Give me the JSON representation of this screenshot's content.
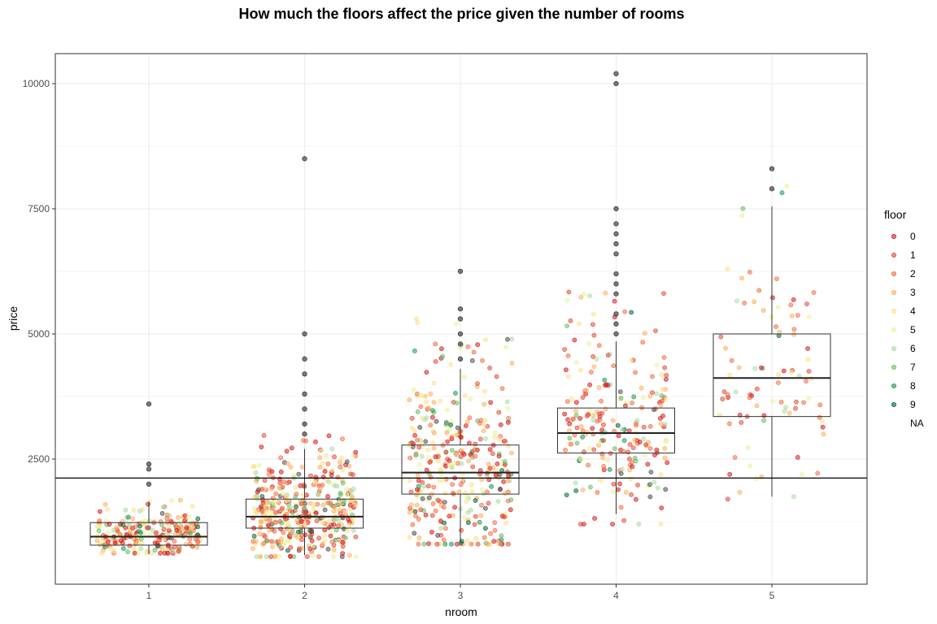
{
  "chart_data": {
    "type": "boxplot-jitter",
    "title": "How much the floors affect the price given the number of rooms",
    "xlabel": "nroom",
    "ylabel": "price",
    "x_categories": [
      "1",
      "2",
      "3",
      "4",
      "5"
    ],
    "y_ticks": [
      2500,
      5000,
      7500,
      10000
    ],
    "ylim": [
      0,
      10600
    ],
    "grid": true,
    "reference_line": 2120,
    "legend": {
      "title": "floor",
      "position": "right",
      "levels": [
        "0",
        "1",
        "2",
        "3",
        "4",
        "5",
        "6",
        "7",
        "8",
        "9",
        "NA"
      ],
      "colors": [
        "#d7191c",
        "#e34a33",
        "#f46d43",
        "#fdae61",
        "#fee08b",
        "#e6f598",
        "#abdda4",
        "#66bd63",
        "#1a9850",
        "#006837",
        "#4d4d4d"
      ]
    },
    "boxes": [
      {
        "nroom": "1",
        "q1": 780,
        "median": 950,
        "q3": 1230,
        "whisker_low": 600,
        "whisker_high": 1650
      },
      {
        "nroom": "2",
        "q1": 1120,
        "median": 1350,
        "q3": 1700,
        "whisker_low": 580,
        "whisker_high": 2700
      },
      {
        "nroom": "3",
        "q1": 1800,
        "median": 2230,
        "q3": 2780,
        "whisker_low": 850,
        "whisker_high": 4300
      },
      {
        "nroom": "4",
        "q1": 2620,
        "median": 3020,
        "q3": 3520,
        "whisker_low": 1400,
        "whisker_high": 4850
      },
      {
        "nroom": "5",
        "q1": 3350,
        "median": 4120,
        "q3": 5000,
        "whisker_low": 1750,
        "whisker_high": 7550
      }
    ],
    "outliers": [
      {
        "nroom": "1",
        "price": 3600
      },
      {
        "nroom": "1",
        "price": 2400
      },
      {
        "nroom": "1",
        "price": 2300
      },
      {
        "nroom": "1",
        "price": 2000
      },
      {
        "nroom": "2",
        "price": 8500
      },
      {
        "nroom": "2",
        "price": 5000
      },
      {
        "nroom": "2",
        "price": 4500
      },
      {
        "nroom": "2",
        "price": 4200
      },
      {
        "nroom": "2",
        "price": 3800
      },
      {
        "nroom": "2",
        "price": 3500
      },
      {
        "nroom": "2",
        "price": 3200
      },
      {
        "nroom": "2",
        "price": 3000
      },
      {
        "nroom": "3",
        "price": 6250
      },
      {
        "nroom": "3",
        "price": 5500
      },
      {
        "nroom": "3",
        "price": 5300
      },
      {
        "nroom": "3",
        "price": 5000
      },
      {
        "nroom": "3",
        "price": 4800
      },
      {
        "nroom": "3",
        "price": 4500
      },
      {
        "nroom": "4",
        "price": 10200
      },
      {
        "nroom": "4",
        "price": 10000
      },
      {
        "nroom": "4",
        "price": 7500
      },
      {
        "nroom": "4",
        "price": 7200
      },
      {
        "nroom": "4",
        "price": 7000
      },
      {
        "nroom": "4",
        "price": 6800
      },
      {
        "nroom": "4",
        "price": 6600
      },
      {
        "nroom": "4",
        "price": 6200
      },
      {
        "nroom": "4",
        "price": 6000
      },
      {
        "nroom": "4",
        "price": 5800
      },
      {
        "nroom": "4",
        "price": 5400
      },
      {
        "nroom": "4",
        "price": 5200
      },
      {
        "nroom": "4",
        "price": 5000
      },
      {
        "nroom": "5",
        "price": 8300
      },
      {
        "nroom": "5",
        "price": 7900
      }
    ],
    "point_groups": [
      {
        "nroom": "1",
        "count": 240,
        "min": 620,
        "max": 1700,
        "center": 950
      },
      {
        "nroom": "2",
        "count": 420,
        "min": 550,
        "max": 3000,
        "center": 1400
      },
      {
        "nroom": "3",
        "count": 360,
        "min": 800,
        "max": 5300,
        "center": 2300
      },
      {
        "nroom": "4",
        "count": 230,
        "min": 1200,
        "max": 6100,
        "center": 3000
      },
      {
        "nroom": "5",
        "count": 90,
        "min": 1700,
        "max": 8300,
        "center": 4200
      }
    ]
  }
}
